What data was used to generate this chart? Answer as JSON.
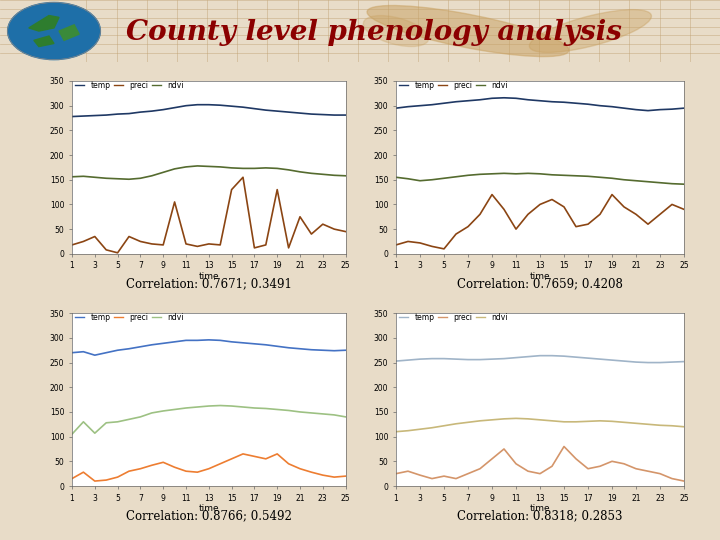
{
  "title": "County level phenology analysis",
  "title_color": "#8B0000",
  "header_bg": "#D2B48C",
  "page_bg": "#E8DCC8",
  "plots": [
    {
      "correlation": "Correlation: 0.7671; 0.3491",
      "ylim": [
        0,
        350
      ],
      "yticks": [
        0,
        50,
        100,
        150,
        200,
        250,
        300,
        350
      ],
      "temp_color": "#1F3864",
      "preci_color": "#8B4513",
      "ndvi_color": "#556B2F",
      "temp": [
        278,
        279,
        280,
        281,
        283,
        284,
        287,
        289,
        292,
        296,
        300,
        302,
        302,
        301,
        299,
        297,
        294,
        291,
        289,
        287,
        285,
        283,
        282,
        281,
        281
      ],
      "ndvi": [
        156,
        157,
        155,
        153,
        152,
        151,
        153,
        158,
        165,
        172,
        176,
        178,
        177,
        176,
        174,
        173,
        173,
        174,
        173,
        170,
        166,
        163,
        161,
        159,
        158
      ],
      "preci": [
        18,
        25,
        35,
        8,
        2,
        35,
        25,
        20,
        18,
        105,
        20,
        15,
        20,
        18,
        130,
        155,
        12,
        18,
        130,
        12,
        75,
        40,
        60,
        50,
        45
      ]
    },
    {
      "correlation": "Correlation: 0.7659; 0.4208",
      "ylim": [
        0,
        350
      ],
      "yticks": [
        0,
        50,
        100,
        150,
        200,
        250,
        300,
        350
      ],
      "temp_color": "#1F3864",
      "preci_color": "#8B4513",
      "ndvi_color": "#556B2F",
      "temp": [
        295,
        298,
        300,
        302,
        305,
        308,
        310,
        312,
        315,
        316,
        315,
        312,
        310,
        308,
        307,
        305,
        303,
        300,
        298,
        295,
        292,
        290,
        292,
        293,
        295
      ],
      "ndvi": [
        155,
        152,
        148,
        150,
        153,
        156,
        159,
        161,
        162,
        163,
        162,
        163,
        162,
        160,
        159,
        158,
        157,
        155,
        153,
        150,
        148,
        146,
        144,
        142,
        141
      ],
      "preci": [
        18,
        25,
        22,
        15,
        10,
        40,
        55,
        80,
        120,
        90,
        50,
        80,
        100,
        110,
        95,
        55,
        60,
        80,
        120,
        95,
        80,
        60,
        80,
        100,
        90
      ]
    },
    {
      "correlation": "Correlation: 0.8766; 0.5492",
      "ylim": [
        0,
        350
      ],
      "yticks": [
        0,
        50,
        100,
        150,
        200,
        250,
        300,
        350
      ],
      "temp_color": "#4472C4",
      "preci_color": "#ED7D31",
      "ndvi_color": "#9DC183",
      "temp": [
        270,
        272,
        265,
        270,
        275,
        278,
        282,
        286,
        289,
        292,
        295,
        295,
        296,
        295,
        292,
        290,
        288,
        286,
        283,
        280,
        278,
        276,
        275,
        274,
        275
      ],
      "ndvi": [
        105,
        130,
        107,
        128,
        130,
        135,
        140,
        148,
        152,
        155,
        158,
        160,
        162,
        163,
        162,
        160,
        158,
        157,
        155,
        153,
        150,
        148,
        146,
        144,
        140
      ],
      "preci": [
        15,
        28,
        10,
        12,
        18,
        30,
        35,
        42,
        48,
        38,
        30,
        28,
        35,
        45,
        55,
        65,
        60,
        55,
        65,
        45,
        35,
        28,
        22,
        18,
        20
      ]
    },
    {
      "correlation": "Correlation: 0.8318; 0.2853",
      "ylim": [
        0,
        350
      ],
      "yticks": [
        0,
        50,
        100,
        150,
        200,
        250,
        300,
        350
      ],
      "temp_color": "#A0B4C8",
      "preci_color": "#D4956A",
      "ndvi_color": "#C8B87A",
      "temp": [
        253,
        255,
        257,
        258,
        258,
        257,
        256,
        256,
        257,
        258,
        260,
        262,
        264,
        264,
        263,
        261,
        259,
        257,
        255,
        253,
        251,
        250,
        250,
        251,
        252
      ],
      "ndvi": [
        110,
        112,
        115,
        118,
        122,
        126,
        129,
        132,
        134,
        136,
        137,
        136,
        134,
        132,
        130,
        130,
        131,
        132,
        131,
        129,
        127,
        125,
        123,
        122,
        120
      ],
      "preci": [
        25,
        30,
        22,
        15,
        20,
        15,
        25,
        35,
        55,
        75,
        45,
        30,
        25,
        40,
        80,
        55,
        35,
        40,
        50,
        45,
        35,
        30,
        25,
        15,
        10
      ]
    }
  ],
  "xlabel": "time",
  "xticks": [
    1,
    3,
    5,
    7,
    9,
    11,
    13,
    15,
    17,
    19,
    21,
    23,
    25
  ]
}
